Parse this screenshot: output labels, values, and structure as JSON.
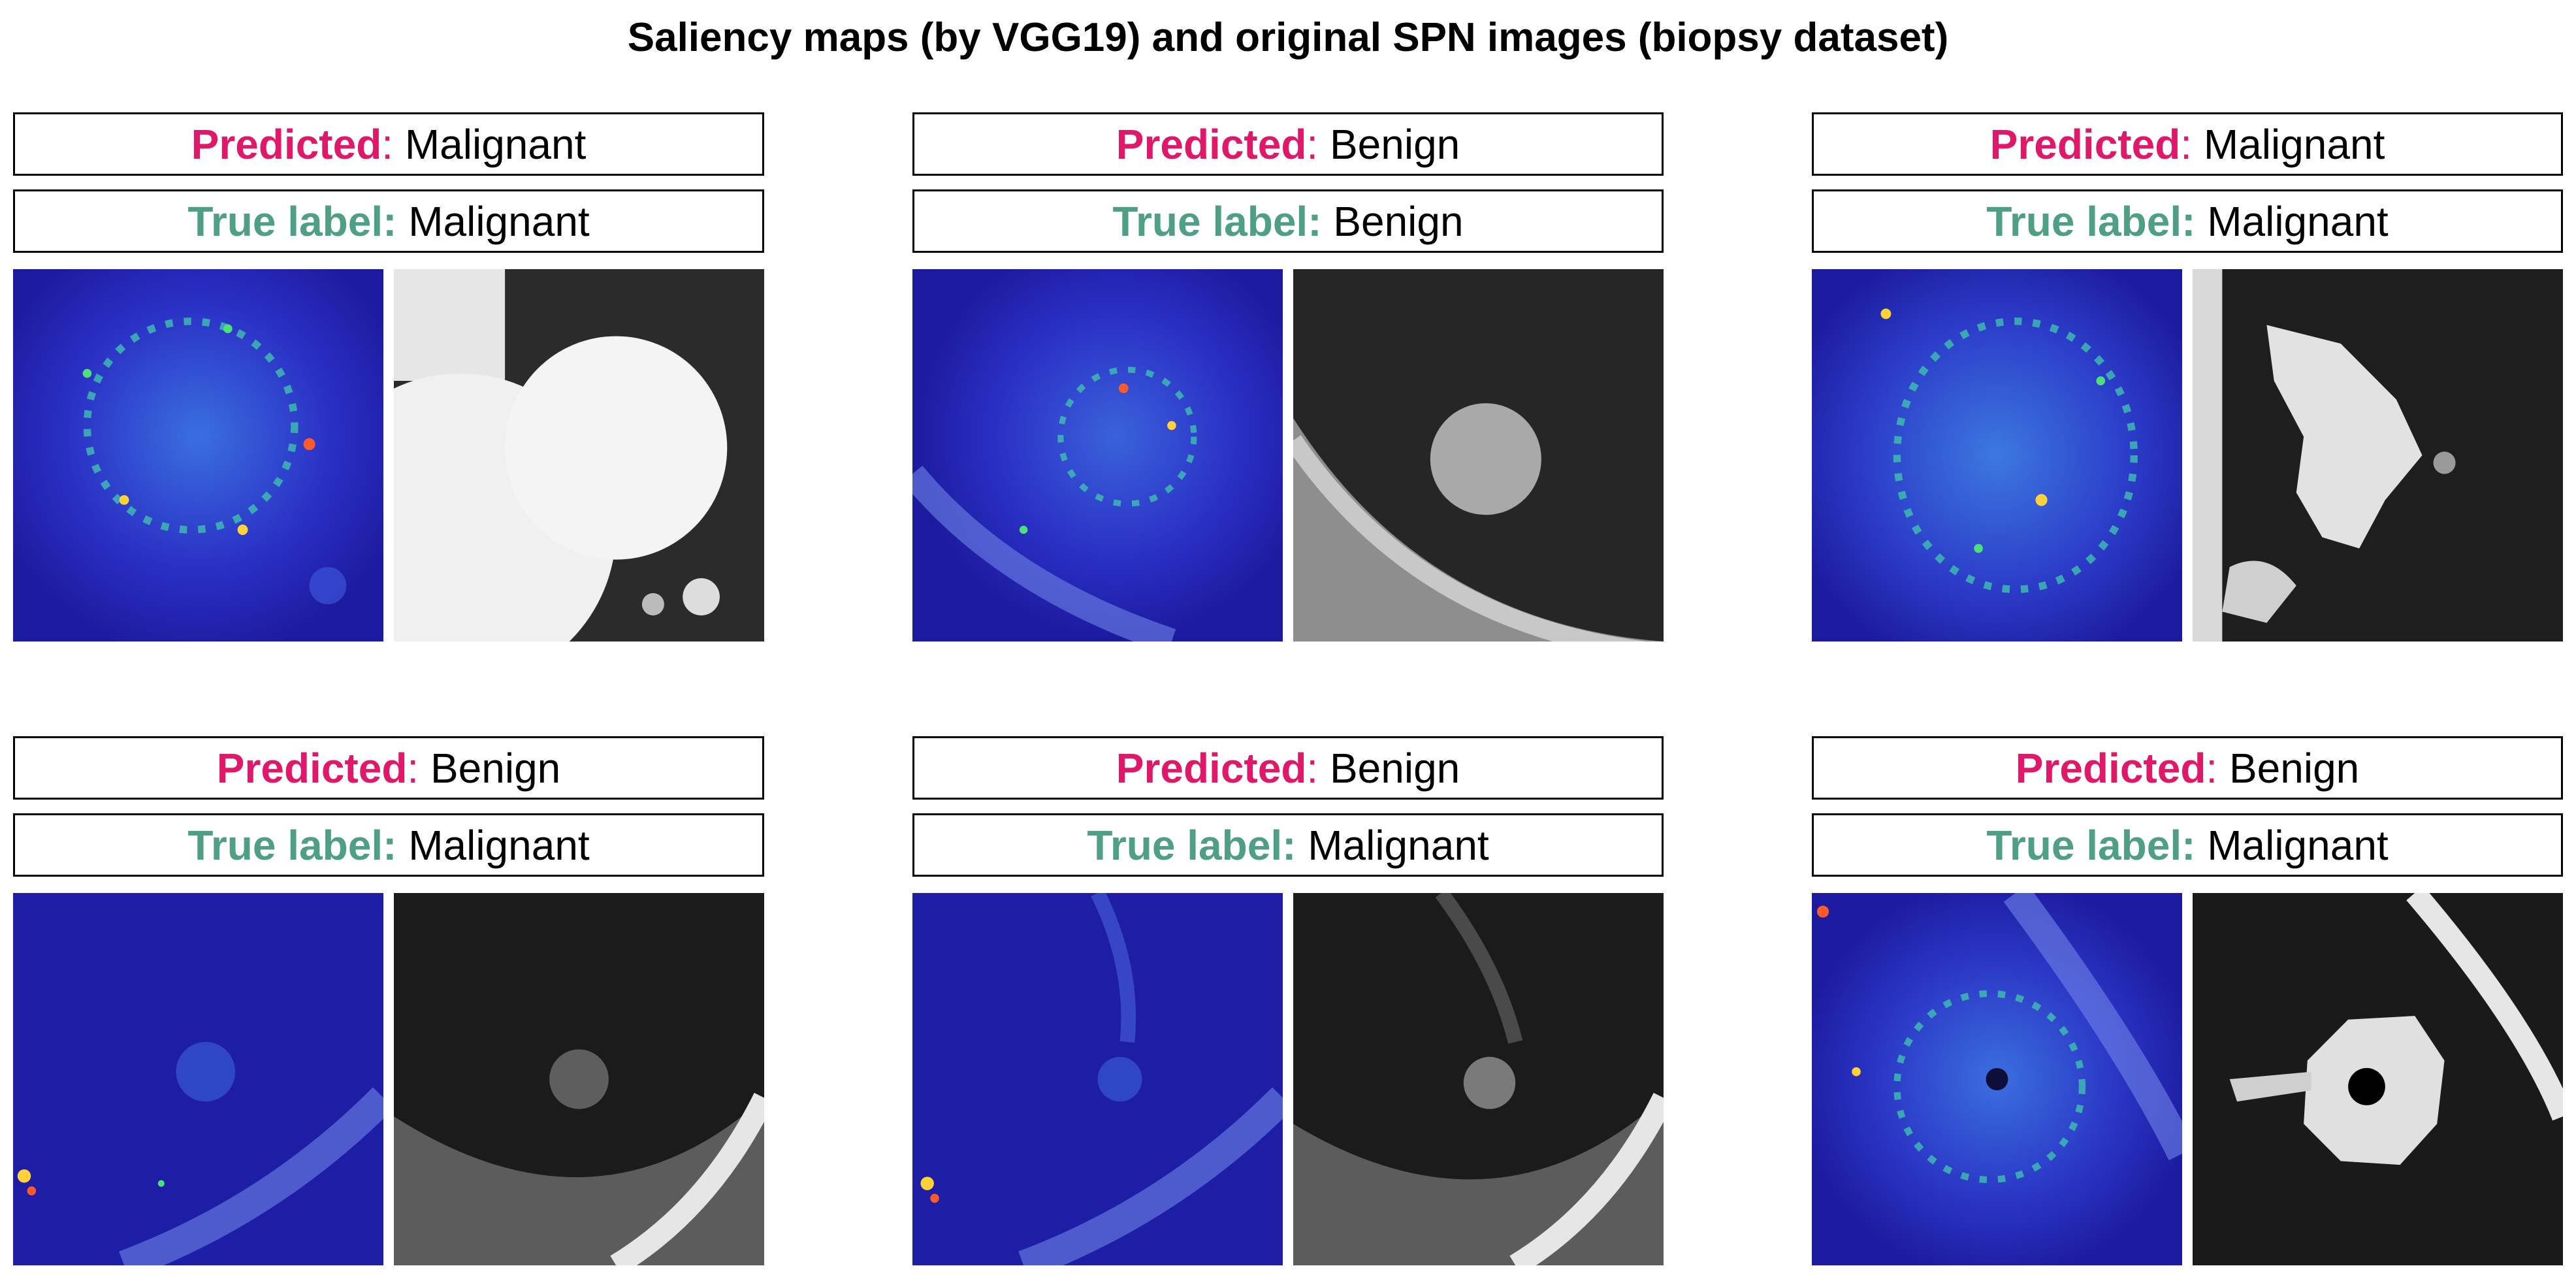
{
  "figure": {
    "title": "Saliency maps (by VGG19) and original SPN images (biopsy dataset)"
  },
  "labels": {
    "predicted_key": "Predicted",
    "true_key": "True label:"
  },
  "panels": [
    {
      "predicted": "Malignant",
      "true_label": "Malignant"
    },
    {
      "predicted": "Benign",
      "true_label": "Benign"
    },
    {
      "predicted": "Malignant",
      "true_label": "Malignant"
    },
    {
      "predicted": "Benign",
      "true_label": "Malignant"
    },
    {
      "predicted": "Benign",
      "true_label": "Malignant"
    },
    {
      "predicted": "Benign",
      "true_label": "Malignant"
    }
  ],
  "colors": {
    "predicted_key": "#e0186a",
    "true_key": "#4f9e86",
    "saliency_background": "#1f1fae",
    "ct_background": "#1a1a1a"
  }
}
